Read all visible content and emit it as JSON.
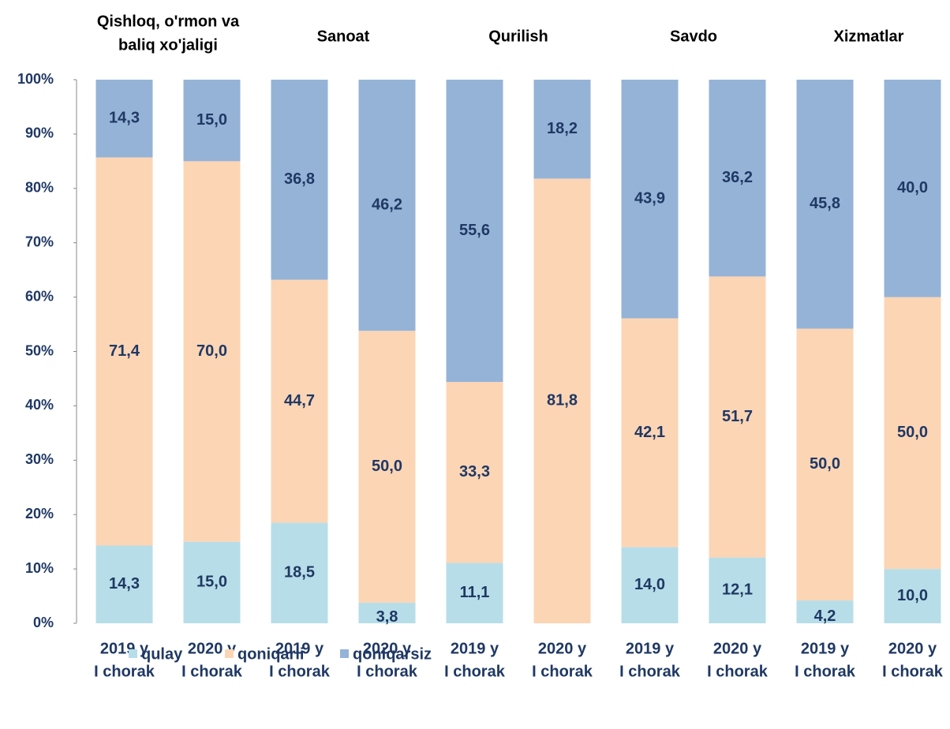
{
  "chart_data": {
    "type": "stacked_bar",
    "groups": [
      [
        "Qishloq, o'rmon va",
        "baliq xo'jaligi"
      ],
      [
        "Sanoat"
      ],
      [
        "Qurilish"
      ],
      [
        "Savdo"
      ],
      [
        "Xizmatlar"
      ]
    ],
    "categories": [
      [
        "2019 y",
        "I chorak"
      ],
      [
        "2020 y",
        "I chorak"
      ],
      [
        "2019 y",
        "I chorak"
      ],
      [
        "2020 y",
        "I chorak"
      ],
      [
        "2019 y",
        "I chorak"
      ],
      [
        "2020 y",
        "I chorak"
      ],
      [
        "2019 y",
        "I chorak"
      ],
      [
        "2020 y",
        "I chorak"
      ],
      [
        "2019 y",
        "I chorak"
      ],
      [
        "2020 y",
        "I chorak"
      ]
    ],
    "series": [
      {
        "name": "qulay",
        "color": "#b7dee8",
        "values": [
          14.3,
          15.0,
          18.5,
          3.8,
          11.1,
          0,
          14.0,
          12.1,
          4.2,
          10.0
        ],
        "value_labels": [
          "14,3",
          "15,0",
          "18,5",
          "3,8",
          "11,1",
          null,
          "14,0",
          "12,1",
          "4,2",
          "10,0"
        ]
      },
      {
        "name": "qoniqarli",
        "color": "#fcd5b5",
        "values": [
          71.4,
          70.0,
          44.7,
          50.0,
          33.3,
          81.8,
          42.1,
          51.7,
          50.0,
          50.0
        ],
        "value_labels": [
          "71,4",
          "70,0",
          "44,7",
          "50,0",
          "33,3",
          "81,8",
          "42,1",
          "51,7",
          "50,0",
          "50,0"
        ]
      },
      {
        "name": "qoniqarsiz",
        "color": "#95b3d7",
        "values": [
          14.3,
          15.0,
          36.8,
          46.2,
          55.6,
          18.2,
          43.9,
          36.2,
          45.8,
          40.0
        ],
        "value_labels": [
          "14,3",
          "15,0",
          "36,8",
          "46,2",
          "55,6",
          "18,2",
          "43,9",
          "36,2",
          "45,8",
          "40,0"
        ]
      }
    ],
    "ylim": [
      0,
      100
    ],
    "yticks": [
      {
        "value": 0,
        "label": "0%"
      },
      {
        "value": 10,
        "label": "10%"
      },
      {
        "value": 20,
        "label": "20%"
      },
      {
        "value": 30,
        "label": "30%"
      },
      {
        "value": 40,
        "label": "40%"
      },
      {
        "value": 50,
        "label": "50%"
      },
      {
        "value": 60,
        "label": "60%"
      },
      {
        "value": 70,
        "label": "70%"
      },
      {
        "value": 80,
        "label": "80%"
      },
      {
        "value": 90,
        "label": "90%"
      },
      {
        "value": 100,
        "label": "100%"
      }
    ],
    "grid": false,
    "legend": "bottom"
  }
}
